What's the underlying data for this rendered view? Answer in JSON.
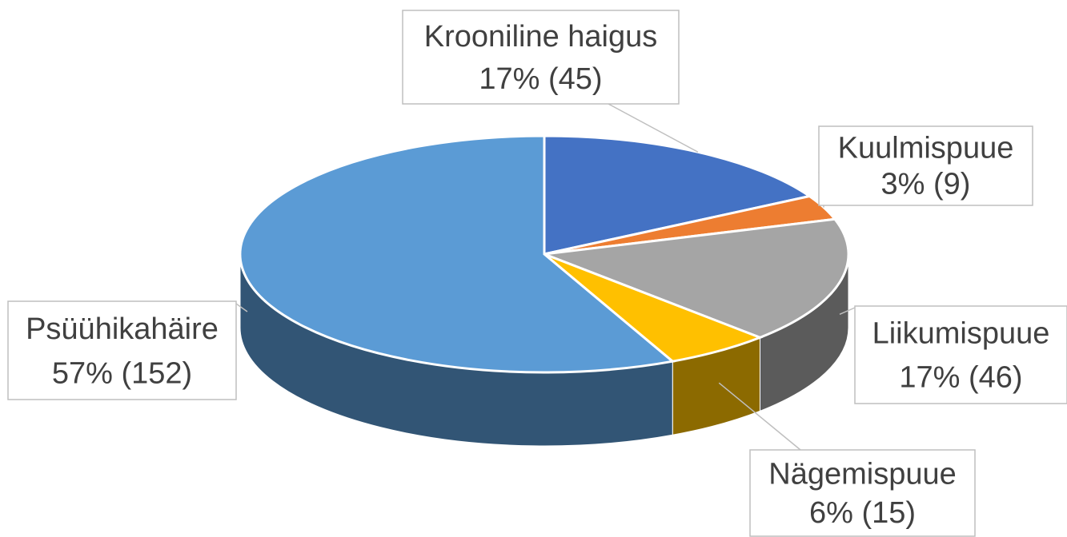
{
  "chart_data": {
    "type": "pie",
    "categories": [
      "Krooniline haigus",
      "Kuulmispuue",
      "Liikumispuue",
      "Nägemispuue",
      "Psüühikahäire"
    ],
    "values": [
      45,
      9,
      46,
      15,
      152
    ],
    "value_labels": [
      "17% (45)",
      "3% (9)",
      "17% (46)",
      "6% (15)",
      "57% (152)"
    ],
    "colors": [
      "#4472c4",
      "#ed7d31",
      "#a5a5a5",
      "#ffc000",
      "#5b9bd5"
    ]
  }
}
